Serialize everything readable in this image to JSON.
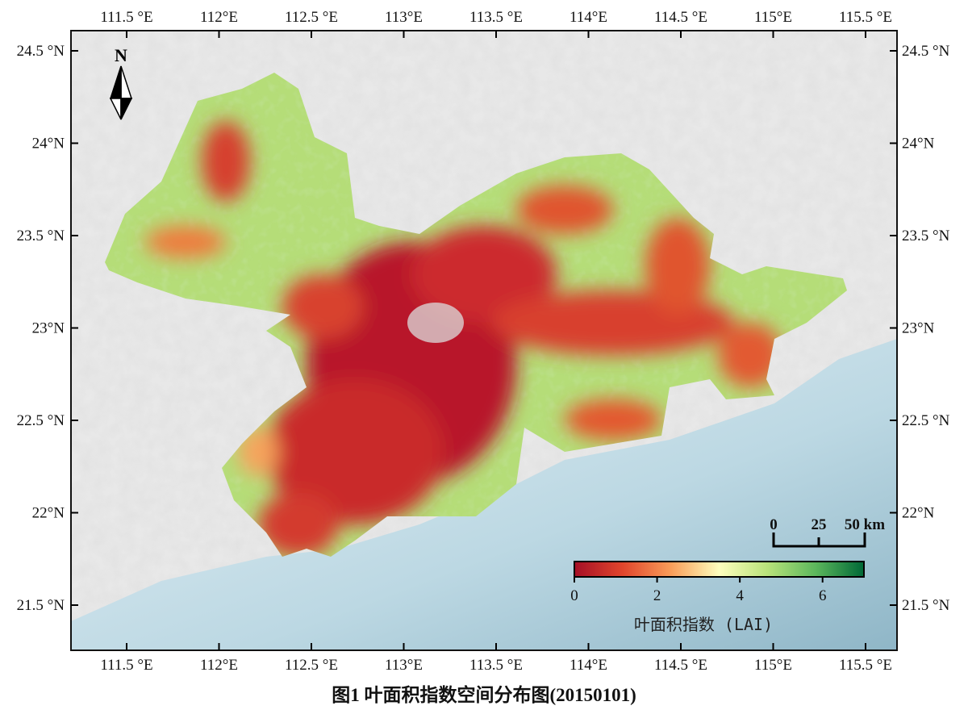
{
  "caption": "图1 叶面积指数空间分布图(20150101)",
  "axes": {
    "lon_ticks": [
      "111.5 °E",
      "112°E",
      "112.5 °E",
      "113°E",
      "113.5 °E",
      "114°E",
      "114.5 °E",
      "115°E",
      "115.5 °E"
    ],
    "lat_ticks": [
      "24.5 °N",
      "24°N",
      "23.5 °N",
      "23°N",
      "22.5 °N",
      "22°N",
      "21.5 °N"
    ]
  },
  "north_arrow": {
    "label": "N",
    "icon": "north-arrow-icon"
  },
  "scale_bar": {
    "labels": [
      "0",
      "25",
      "50 km"
    ]
  },
  "legend": {
    "title": "叶面积指数 (LAI)",
    "ticks": [
      "0",
      "2",
      "4",
      "6"
    ],
    "range": [
      0,
      7
    ],
    "colors": [
      "#a50f26",
      "#e0452c",
      "#f99d59",
      "#fefebd",
      "#b8e27a",
      "#5cb75c",
      "#006837"
    ]
  },
  "colors": {
    "land_background": "#dcdcdc",
    "sea": "#a9cad8",
    "frame": "#111111"
  }
}
